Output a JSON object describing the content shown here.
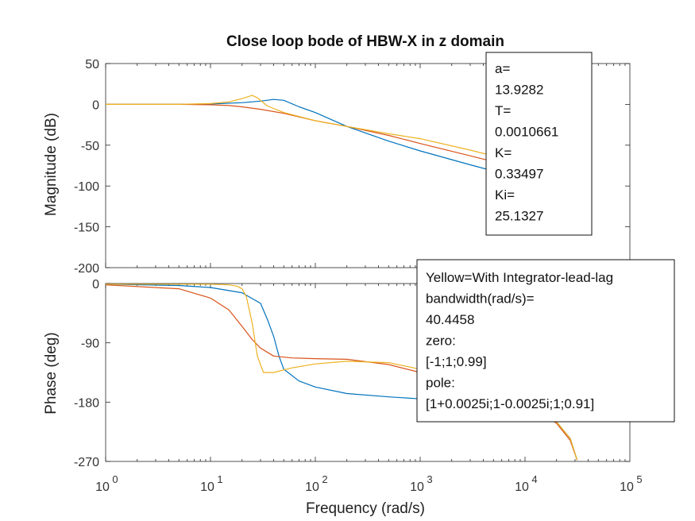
{
  "chart_data": {
    "type": "line",
    "title": "Close loop bode of HBW-X in z domain",
    "xlabel": "Frequency  (rad/s)",
    "xscale": "log",
    "xlim": [
      1,
      100000
    ],
    "x_ticks": [
      {
        "base": "10",
        "exp": "0",
        "value": 1
      },
      {
        "base": "10",
        "exp": "1",
        "value": 10
      },
      {
        "base": "10",
        "exp": "2",
        "value": 100
      },
      {
        "base": "10",
        "exp": "3",
        "value": 1000
      },
      {
        "base": "10",
        "exp": "4",
        "value": 10000
      },
      {
        "base": "10",
        "exp": "5",
        "value": 100000
      }
    ],
    "grid": false,
    "colors": {
      "blue": "#0072BD",
      "orange": "#D95319",
      "yellow": "#EDB120"
    },
    "magnitude": {
      "ylabel": "Magnitude (dB)",
      "ylim": [
        -200,
        50
      ],
      "y_ticks": [
        "50",
        "0",
        "-50",
        "-100",
        "-150",
        "-200"
      ],
      "series": [
        {
          "color": "#0072BD",
          "x": [
            1,
            5,
            10,
            20,
            30,
            40,
            50,
            70,
            100,
            200,
            500,
            1000,
            3000,
            10000,
            20000,
            27000,
            30000,
            31400
          ],
          "y": [
            0,
            0,
            0.5,
            2,
            4,
            6,
            5,
            -3,
            -10,
            -27,
            -45,
            -57,
            -74,
            -92,
            -103,
            -113,
            -125,
            -140
          ]
        },
        {
          "color": "#D95319",
          "x": [
            1,
            5,
            10,
            15,
            20,
            30,
            50,
            100,
            200,
            500,
            1000,
            3000,
            10000,
            20000,
            27000,
            30000,
            31400
          ],
          "y": [
            0,
            0,
            -0.5,
            -1.5,
            -3,
            -6,
            -11,
            -20,
            -27,
            -38,
            -48,
            -63,
            -80,
            -96,
            -108,
            -120,
            -135
          ]
        },
        {
          "color": "#EDB120",
          "x": [
            1,
            5,
            10,
            15,
            20,
            25,
            28,
            35,
            50,
            100,
            200,
            500,
            1000,
            3000,
            10000,
            20000,
            27000,
            30000,
            31400
          ],
          "y": [
            0,
            0,
            1,
            3,
            7,
            11,
            8,
            -2,
            -10,
            -20,
            -27,
            -36,
            -42,
            -56,
            -73,
            -87,
            -98,
            -110,
            -127
          ]
        }
      ]
    },
    "phase": {
      "ylabel": "Phase (deg)",
      "ylim": [
        -270,
        0
      ],
      "y_ticks": [
        "0",
        "-90",
        "-180",
        "-270"
      ],
      "series": [
        {
          "color": "#0072BD",
          "x": [
            1,
            5,
            10,
            20,
            30,
            35,
            40,
            45,
            50,
            70,
            100,
            200,
            500,
            1000,
            3000,
            10000,
            20000,
            27000,
            31400
          ],
          "y": [
            -1,
            -3,
            -6,
            -14,
            -30,
            -55,
            -80,
            -110,
            -130,
            -148,
            -157,
            -167,
            -172,
            -175,
            -178,
            -190,
            -210,
            -235,
            -268
          ]
        },
        {
          "color": "#D95319",
          "x": [
            1,
            5,
            10,
            15,
            20,
            25,
            30,
            40,
            60,
            100,
            200,
            500,
            1000,
            3000,
            10000,
            20000,
            27000,
            31400
          ],
          "y": [
            -2,
            -8,
            -22,
            -40,
            -65,
            -85,
            -98,
            -110,
            -113,
            -114,
            -115,
            -123,
            -135,
            -155,
            -185,
            -212,
            -238,
            -268
          ]
        },
        {
          "color": "#EDB120",
          "x": [
            1,
            5,
            10,
            15,
            18,
            20,
            22,
            25,
            28,
            32,
            40,
            60,
            100,
            200,
            500,
            1000,
            3000,
            10000,
            20000,
            27000,
            31400
          ],
          "y": [
            -1,
            -1,
            -1,
            -2,
            -4,
            -8,
            -20,
            -60,
            -110,
            -135,
            -135,
            -128,
            -122,
            -118,
            -120,
            -130,
            -150,
            -180,
            -210,
            -235,
            -268
          ]
        }
      ]
    },
    "annotations": {
      "params_lines": [
        "a=",
        "13.9282",
        "T=",
        "0.0010661",
        "K=",
        "0.33497",
        "Ki=",
        "25.1327"
      ],
      "info_lines": [
        "Yellow=With Integrator-lead-lag",
        "bandwidth(rad/s)=",
        "40.4458",
        "zero:",
        "[-1;1;0.99]",
        "pole:",
        "[1+0.0025i;1-0.0025i;1;0.91]"
      ]
    }
  }
}
